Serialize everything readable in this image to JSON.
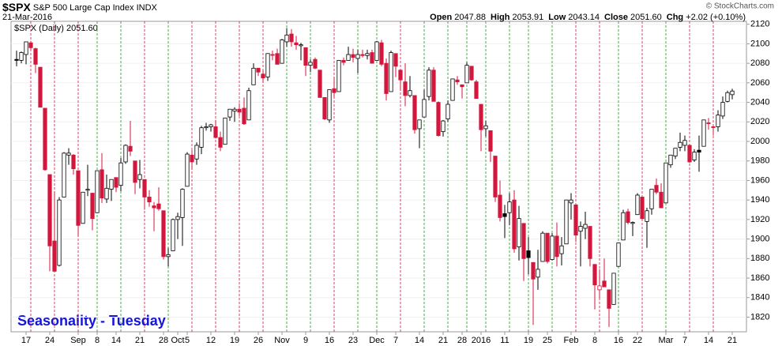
{
  "header": {
    "symbol": "$SPX",
    "name": "S&P 500 Large Cap Index",
    "exchange": "INDX",
    "date": "21-Mar-2016",
    "stats": [
      {
        "label": "Open",
        "value": "2047.88"
      },
      {
        "label": "High",
        "value": "2053.91"
      },
      {
        "label": "Low",
        "value": "2043.14"
      },
      {
        "label": "Close",
        "value": "2051.60"
      },
      {
        "label": "Chg",
        "value": "+2.02 (+0.10%)"
      }
    ],
    "credit": "© StockCharts.com"
  },
  "chart_data": {
    "type": "candlestick",
    "legend": {
      "label": "$SPX (Daily)",
      "value": "2051.60"
    },
    "annotation": "Seasonality - Tuesday",
    "categories": [
      null,
      null,
      "17",
      null,
      null,
      null,
      null,
      "24",
      null,
      null,
      null,
      null,
      null,
      "Sep",
      null,
      null,
      null,
      "8",
      null,
      null,
      null,
      "14",
      null,
      null,
      null,
      null,
      "21",
      null,
      null,
      null,
      null,
      "28",
      null,
      null,
      "Oct",
      null,
      "5",
      null,
      null,
      null,
      null,
      "12",
      null,
      null,
      null,
      null,
      "19",
      null,
      null,
      null,
      null,
      "26",
      null,
      null,
      null,
      null,
      "Nov",
      null,
      null,
      null,
      null,
      "9",
      null,
      null,
      null,
      null,
      "16",
      null,
      null,
      null,
      null,
      "23",
      null,
      null,
      null,
      null,
      "Dec",
      null,
      null,
      null,
      "7",
      null,
      null,
      null,
      null,
      "14",
      null,
      null,
      null,
      null,
      "21",
      null,
      null,
      null,
      "28",
      null,
      null,
      null,
      "2016",
      null,
      null,
      null,
      null,
      "11",
      null,
      null,
      null,
      null,
      "19",
      null,
      null,
      null,
      "25",
      null,
      null,
      null,
      null,
      "Feb",
      null,
      null,
      null,
      null,
      "8",
      null,
      null,
      null,
      null,
      "16",
      null,
      null,
      null,
      "22",
      null,
      null,
      null,
      null,
      null,
      "Mar",
      null,
      null,
      null,
      "7",
      null,
      null,
      null,
      null,
      "14",
      null,
      null,
      null,
      null,
      "21"
    ],
    "series": [
      {
        "name": "$SPX",
        "open": [
          2084,
          2083,
          2089,
          2101,
          2095,
          2076,
          2034,
          1966,
          1898,
          1873,
          1943,
          1986,
          1986,
          1970,
          1916,
          1950,
          1947,
          1927,
          1971,
          1941,
          1951,
          1963,
          1955,
          1979,
          1995,
          1980,
          1961,
          1961,
          1943,
          1934,
          1936,
          1929,
          1882,
          1888,
          1920,
          1922,
          1954,
          1986,
          1982,
          1994,
          2014,
          2015,
          2015,
          2004,
          1997,
          2025,
          2031,
          2033,
          2034,
          2022,
          2058,
          2075,
          2069,
          2066,
          2089,
          2090,
          2080,
          2102,
          2110,
          2101,
          2098,
          2096,
          2078,
          2084,
          2073,
          2045,
          2022,
          2054,
          2051,
          2083,
          2083,
          2089,
          2085,
          2089,
          2088,
          2091,
          2083,
          2101,
          2080,
          2051,
          2090,
          2073,
          2061,
          2047,
          2047,
          2013,
          2025,
          2046,
          2073,
          2040,
          2010,
          2023,
          2042,
          2063,
          2058,
          2060,
          2077,
          2061,
          2038,
          2013,
          2011,
          1985,
          1945,
          1926,
          1927,
          1940,
          1892,
          1916,
          1888,
          1876,
          1861,
          1877,
          1906,
          1879,
          1903,
          1885,
          1895,
          1937,
          1935,
          1908,
          1911,
          1913,
          1874,
          1848,
          1857,
          1848,
          1833,
          1872,
          1899,
          1928,
          1916,
          1925,
          1943,
          1918,
          1931,
          1955,
          1948,
          1937,
          1976,
          1985,
          1994,
          1996,
          1996,
          1981,
          1991,
          1995,
          2019,
          2015,
          2015,
          2026,
          2041,
          2047.88
        ],
        "high": [
          2093,
          2092,
          2102,
          2103,
          2096,
          2076,
          2034,
          1966,
          1949,
          1943,
          1989,
          1993,
          1987,
          1970,
          1948,
          1976,
          1947,
          1970,
          1988,
          1966,
          1961,
          1963,
          1983,
          1997,
          2021,
          1980,
          1981,
          1961,
          1950,
          1938,
          1953,
          1929,
          1891,
          1921,
          1927,
          1952,
          1989,
          1991,
          1999,
          2016,
          2019,
          2018,
          2022,
          2010,
          2024,
          2033,
          2035,
          2039,
          2045,
          2055,
          2080,
          2075,
          2073,
          2090,
          2093,
          2095,
          2105,
          2116,
          2115,
          2108,
          2101,
          2096,
          2084,
          2086,
          2073,
          2045,
          2053,
          2066,
          2083,
          2086,
          2097,
          2095,
          2094,
          2094,
          2094,
          2094,
          2103,
          2104,
          2085,
          2093,
          2090,
          2073,
          2080,
          2067,
          2047,
          2022,
          2053,
          2076,
          2076,
          2041,
          2022,
          2042,
          2064,
          2067,
          2058,
          2081,
          2077,
          2063,
          2038,
          2021,
          2011,
          1985,
          1960,
          1935,
          1947,
          1950,
          1934,
          1916,
          1902,
          1876,
          1889,
          1908,
          1906,
          1906,
          1917,
          1902,
          1940,
          1947,
          1935,
          1918,
          1928,
          1913,
          1874,
          1869,
          1880,
          1848,
          1865,
          1896,
          1930,
          1931,
          1918,
          1947,
          1943,
          1932,
          1951,
          1962,
          1957,
          1978,
          1986,
          1993,
          2009,
          2006,
          1997,
          1992,
          2006,
          2022,
          2024,
          2016,
          2032,
          2046,
          2052,
          2053.91
        ],
        "low": [
          2077,
          2080,
          2079,
          2094,
          2070,
          2035,
          1970,
          1867,
          1867,
          1872,
          1943,
          1976,
          1966,
          1903,
          1916,
          1944,
          1909,
          1927,
          1937,
          1937,
          1939,
          1948,
          1949,
          1977,
          1985,
          1946,
          1952,
          1930,
          1933,
          1908,
          1929,
          1879,
          1872,
          1888,
          1900,
          1893,
          1954,
          1971,
          1976,
          1987,
          2011,
          2010,
          2003,
          1990,
          1997,
          2021,
          2020,
          2026,
          2017,
          2022,
          2058,
          2067,
          2060,
          2062,
          2083,
          2079,
          2080,
          2097,
          2097,
          2094,
          2083,
          2067,
          2071,
          2074,
          2045,
          2022,
          2019,
          2045,
          2051,
          2078,
          2083,
          2081,
          2070,
          2086,
          2084,
          2080,
          2083,
          2077,
          2042,
          2051,
          2066,
          2052,
          2036,
          2045,
          2008,
          1993,
          2025,
          2042,
          2041,
          2005,
          2005,
          2020,
          2042,
          2058,
          2044,
          2060,
          2062,
          2044,
          1990,
          2005,
          1979,
          1938,
          1918,
          1901,
          1914,
          1886,
          1878,
          1857,
          1864,
          1812,
          1848,
          1877,
          1875,
          1878,
          1872,
          1873,
          1895,
          1920,
          1897,
          1872,
          1900,
          1872,
          1828,
          1839,
          1851,
          1810,
          1833,
          1872,
          1899,
          1915,
          1903,
          1925,
          1920,
          1891,
          1925,
          1946,
          1932,
          1937,
          1973,
          1982,
          1990,
          1990,
          1978,
          1979,
          1969,
          1995,
          2012,
          2006,
          2010,
          2023,
          2040,
          2043.14
        ],
        "close": [
          2083,
          2091,
          2102,
          2096,
          2079,
          2035,
          1971,
          1893,
          1867,
          1940,
          1988,
          1988,
          1972,
          1914,
          1948,
          1951,
          1921,
          1970,
          1942,
          1952,
          1961,
          1953,
          1978,
          1996,
          1990,
          1958,
          1966,
          1943,
          1938,
          1932,
          1931,
          1882,
          1884,
          1920,
          1923,
          1951,
          1987,
          1979,
          1996,
          2014,
          2015,
          2017,
          2004,
          1994,
          2024,
          2033,
          2033,
          2030,
          2018,
          2052,
          2075,
          2071,
          2065,
          2090,
          2089,
          2079,
          2104,
          2109,
          2102,
          2099,
          2099,
          2078,
          2081,
          2075,
          2045,
          2023,
          2053,
          2050,
          2083,
          2081,
          2089,
          2086,
          2089,
          2088,
          2090,
          2080,
          2102,
          2079,
          2049,
          2091,
          2077,
          2063,
          2047,
          2052,
          2012,
          2022,
          2043,
          2073,
          2041,
          2006,
          2021,
          2038,
          2064,
          2061,
          2056,
          2078,
          2063,
          2044,
          2012,
          2016,
          1990,
          1943,
          1922,
          1923,
          1938,
          1890,
          1921,
          1880,
          1881,
          1859,
          1869,
          1906,
          1877,
          1903,
          1882,
          1893,
          1940,
          1940,
          1904,
          1913,
          1915,
          1880,
          1853,
          1852,
          1851,
          1829,
          1865,
          1896,
          1927,
          1917,
          1917,
          1945,
          1921,
          1929,
          1951,
          1948,
          1932,
          1978,
          1986,
          1993,
          1999,
          2001,
          1979,
          1989,
          1989,
          2022,
          2019,
          2015,
          2027,
          2040,
          2050,
          2051.6
        ]
      }
    ],
    "ylim": [
      1805,
      2123
    ],
    "yticks": [
      1820,
      1840,
      1860,
      1880,
      1900,
      1920,
      1940,
      1960,
      1980,
      2000,
      2020,
      2040,
      2060,
      2080,
      2100,
      2120
    ],
    "grid": true,
    "up_color": "#000000",
    "down_color": "#d3163c",
    "season_up_color": "#1a9a1a",
    "season_down_color": "#d3163c"
  }
}
